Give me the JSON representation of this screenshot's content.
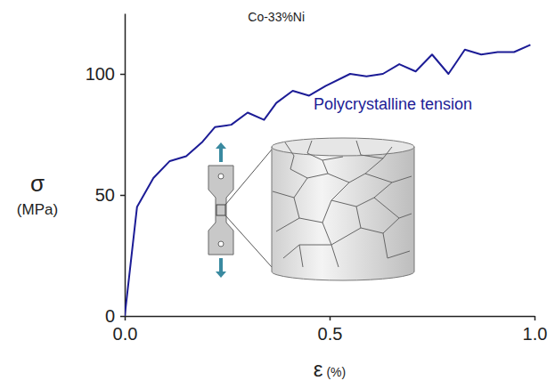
{
  "chart_data": {
    "type": "line",
    "title": "Co-33%Ni",
    "annotation": "Polycrystalline tension",
    "xlabel": "ε (%)",
    "ylabel": "σ (MPa)",
    "x": [
      0,
      0.03,
      0.07,
      0.11,
      0.15,
      0.19,
      0.22,
      0.26,
      0.3,
      0.34,
      0.37,
      0.41,
      0.45,
      0.49,
      0.55,
      0.59,
      0.63,
      0.67,
      0.71,
      0.75,
      0.79,
      0.83,
      0.87,
      0.91,
      0.95,
      0.99
    ],
    "values": [
      0,
      45,
      57,
      64,
      66,
      72,
      78,
      79,
      84,
      81,
      88,
      93,
      91,
      95,
      100,
      99,
      100,
      104,
      101,
      108,
      100,
      110,
      108,
      109,
      109,
      112
    ],
    "color": "#1c1c96",
    "xlim": [
      0,
      1.0
    ],
    "xticks": [
      {
        "value": 0,
        "label": "0.0"
      },
      0.5,
      {
        "value": 1.0,
        "label": "1.0"
      }
    ],
    "ylim": [
      0,
      125
    ],
    "yticks": [
      0,
      50,
      100
    ],
    "grid": false
  }
}
